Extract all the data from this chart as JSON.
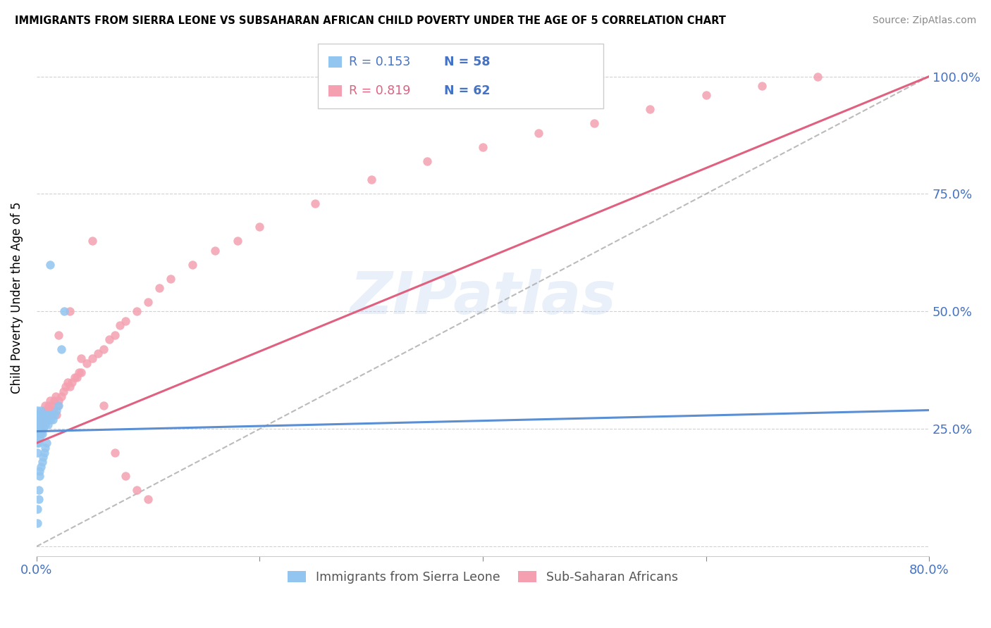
{
  "title": "IMMIGRANTS FROM SIERRA LEONE VS SUBSAHARAN AFRICAN CHILD POVERTY UNDER THE AGE OF 5 CORRELATION CHART",
  "source": "Source: ZipAtlas.com",
  "ylabel": "Child Poverty Under the Age of 5",
  "xlim": [
    0.0,
    0.8
  ],
  "ylim": [
    -0.02,
    1.08
  ],
  "legend_label1": "Immigrants from Sierra Leone",
  "legend_label2": "Sub-Saharan Africans",
  "R1": 0.153,
  "N1": 58,
  "R2": 0.819,
  "N2": 62,
  "color_blue": "#92C5F0",
  "color_pink": "#F4A0B0",
  "color_blue_line": "#5B8FD4",
  "color_pink_line": "#E06080",
  "watermark_text": "ZIPatlas",
  "blue_scatter_x": [
    0.001,
    0.001,
    0.001,
    0.001,
    0.001,
    0.001,
    0.001,
    0.002,
    0.002,
    0.002,
    0.002,
    0.002,
    0.002,
    0.003,
    0.003,
    0.003,
    0.003,
    0.003,
    0.004,
    0.004,
    0.004,
    0.004,
    0.005,
    0.005,
    0.005,
    0.006,
    0.006,
    0.006,
    0.007,
    0.007,
    0.008,
    0.008,
    0.009,
    0.01,
    0.01,
    0.011,
    0.012,
    0.013,
    0.014,
    0.015,
    0.016,
    0.018,
    0.02,
    0.022,
    0.025,
    0.001,
    0.001,
    0.002,
    0.002,
    0.003,
    0.003,
    0.004,
    0.005,
    0.006,
    0.007,
    0.008,
    0.009,
    0.012
  ],
  "blue_scatter_y": [
    0.2,
    0.22,
    0.24,
    0.26,
    0.27,
    0.28,
    0.29,
    0.22,
    0.24,
    0.25,
    0.26,
    0.27,
    0.28,
    0.23,
    0.25,
    0.26,
    0.27,
    0.28,
    0.24,
    0.25,
    0.27,
    0.29,
    0.24,
    0.26,
    0.28,
    0.25,
    0.27,
    0.28,
    0.26,
    0.27,
    0.26,
    0.28,
    0.27,
    0.26,
    0.28,
    0.27,
    0.28,
    0.27,
    0.28,
    0.27,
    0.28,
    0.29,
    0.3,
    0.42,
    0.5,
    0.05,
    0.08,
    0.1,
    0.12,
    0.15,
    0.16,
    0.17,
    0.18,
    0.19,
    0.2,
    0.21,
    0.22,
    0.6
  ],
  "pink_scatter_x": [
    0.004,
    0.005,
    0.006,
    0.007,
    0.008,
    0.009,
    0.01,
    0.011,
    0.012,
    0.013,
    0.014,
    0.015,
    0.016,
    0.017,
    0.018,
    0.019,
    0.02,
    0.022,
    0.024,
    0.026,
    0.028,
    0.03,
    0.032,
    0.034,
    0.036,
    0.038,
    0.04,
    0.045,
    0.05,
    0.055,
    0.06,
    0.065,
    0.07,
    0.075,
    0.08,
    0.09,
    0.1,
    0.11,
    0.12,
    0.14,
    0.16,
    0.18,
    0.2,
    0.25,
    0.3,
    0.35,
    0.4,
    0.45,
    0.5,
    0.55,
    0.6,
    0.65,
    0.7,
    0.02,
    0.03,
    0.04,
    0.05,
    0.06,
    0.07,
    0.08,
    0.09,
    0.1
  ],
  "pink_scatter_y": [
    0.27,
    0.28,
    0.26,
    0.29,
    0.3,
    0.27,
    0.29,
    0.3,
    0.31,
    0.28,
    0.3,
    0.29,
    0.31,
    0.32,
    0.28,
    0.3,
    0.31,
    0.32,
    0.33,
    0.34,
    0.35,
    0.34,
    0.35,
    0.36,
    0.36,
    0.37,
    0.37,
    0.39,
    0.4,
    0.41,
    0.42,
    0.44,
    0.45,
    0.47,
    0.48,
    0.5,
    0.52,
    0.55,
    0.57,
    0.6,
    0.63,
    0.65,
    0.68,
    0.73,
    0.78,
    0.82,
    0.85,
    0.88,
    0.9,
    0.93,
    0.96,
    0.98,
    1.0,
    0.45,
    0.5,
    0.4,
    0.65,
    0.3,
    0.2,
    0.15,
    0.12,
    0.1
  ],
  "pink_line_x0": 0.0,
  "pink_line_x1": 0.8,
  "pink_line_y0": 0.22,
  "pink_line_y1": 1.0,
  "blue_line_x0": 0.0,
  "blue_line_x1": 0.8,
  "blue_line_y0": 0.245,
  "blue_line_y1": 0.29,
  "dash_line_x0": 0.0,
  "dash_line_x1": 0.8,
  "dash_line_y0": 0.0,
  "dash_line_y1": 1.0
}
